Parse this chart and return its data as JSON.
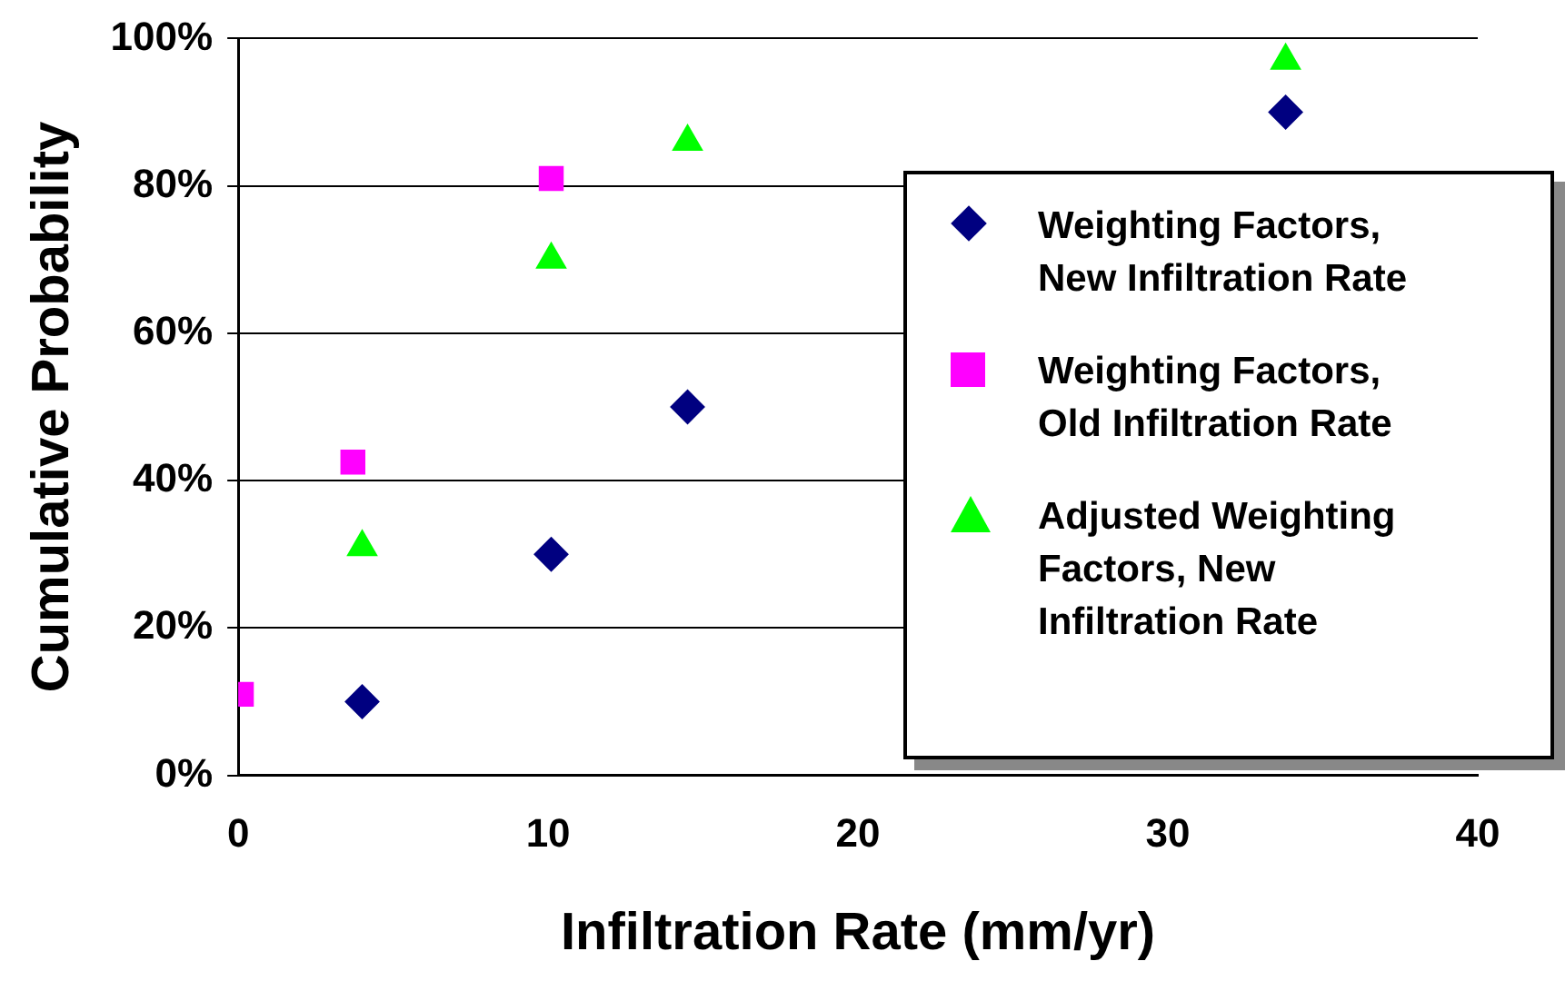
{
  "chart_data": {
    "type": "scatter",
    "xlabel": "Infiltration Rate (mm/yr)",
    "ylabel": "Cumulative Probability",
    "xlim": [
      0,
      40
    ],
    "xticks": [
      0,
      10,
      20,
      30,
      40
    ],
    "ylim": [
      0,
      100
    ],
    "yticks": [
      {
        "value": 0,
        "label": "0%"
      },
      {
        "value": 20,
        "label": "20%"
      },
      {
        "value": 40,
        "label": "40%"
      },
      {
        "value": 60,
        "label": "60%"
      },
      {
        "value": 80,
        "label": "80%"
      },
      {
        "value": 100,
        "label": "100%"
      }
    ],
    "grid": "y",
    "legend": "right",
    "series": [
      {
        "name": "Weighting Factors, New Infiltration Rate",
        "color": "#000080",
        "marker": "diamond",
        "x": [
          4.0,
          10.1,
          14.5,
          33.8
        ],
        "values": [
          10,
          30,
          50,
          90
        ]
      },
      {
        "name": "Weighting Factors, Old Infiltration Rate",
        "color": "#ff00ff",
        "marker": "square",
        "x": [
          0.1,
          3.7,
          10.1
        ],
        "values": [
          11,
          42.5,
          81
        ]
      },
      {
        "name": "Adjusted Weighting Factors, New Infiltration Rate",
        "color": "#00ff00",
        "marker": "triangle",
        "x": [
          4.0,
          10.1,
          14.5,
          33.8
        ],
        "values": [
          31,
          70,
          86,
          97
        ]
      }
    ]
  }
}
